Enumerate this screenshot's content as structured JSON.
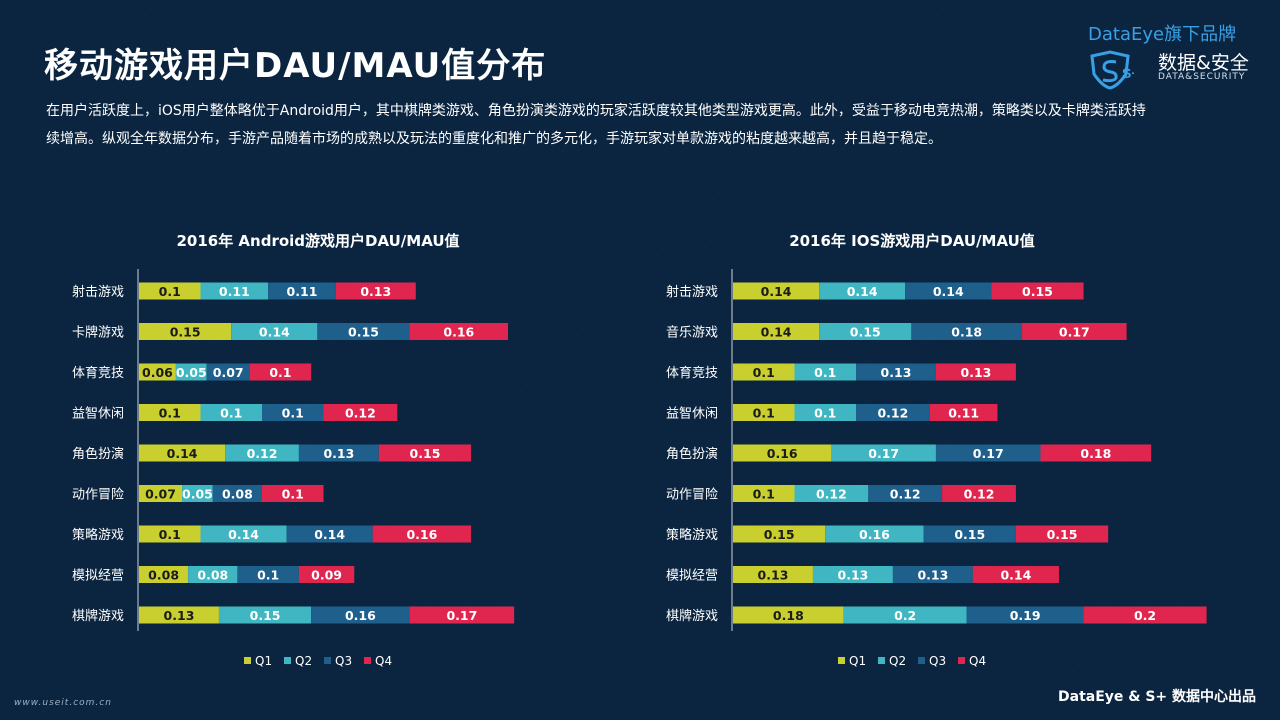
{
  "page": {
    "title": "移动游戏用户DAU/MAU值分布",
    "description": "在用户活跃度上，iOS用户整体略优于Android用户，其中棋牌类游戏、角色扮演类游戏的玩家活跃度较其他类型游戏更高。此外，受益于移动电竞热潮，策略类以及卡牌类活跃持续增高。纵观全年数据分布，手游产品随着市场的成熟以及玩法的重度化和推广的多元化，手游玩家对单款游戏的粘度越来越高，并且趋于稳定。"
  },
  "brand": {
    "top": "DataEye旗下品牌",
    "logo_text": "S+",
    "name_cn": "数据&安全",
    "name_en": "DATA&SECURITY"
  },
  "footer": {
    "left": "www.useit.com.cn",
    "right": "DataEye & S+ 数据中心出品"
  },
  "colors": {
    "Q1": "#c8cf2e",
    "Q2": "#3fb6c1",
    "Q3": "#1e5f8c",
    "Q4": "#e0264f"
  },
  "chart_data": [
    {
      "type": "bar",
      "stacked": true,
      "orientation": "horizontal",
      "title": "2016年 Android游戏用户DAU/MAU值",
      "categories": [
        "射击游戏",
        "卡牌游戏",
        "体育竞技",
        "益智休闲",
        "角色扮演",
        "动作冒险",
        "策略游戏",
        "模拟经营",
        "棋牌游戏"
      ],
      "series": [
        {
          "name": "Q1",
          "values": [
            0.1,
            0.15,
            0.06,
            0.1,
            0.14,
            0.07,
            0.1,
            0.08,
            0.13
          ]
        },
        {
          "name": "Q2",
          "values": [
            0.11,
            0.14,
            0.05,
            0.1,
            0.12,
            0.05,
            0.14,
            0.08,
            0.15
          ]
        },
        {
          "name": "Q3",
          "values": [
            0.11,
            0.15,
            0.07,
            0.1,
            0.13,
            0.08,
            0.14,
            0.1,
            0.16
          ]
        },
        {
          "name": "Q4",
          "values": [
            0.13,
            0.16,
            0.1,
            0.12,
            0.15,
            0.1,
            0.16,
            0.09,
            0.17
          ]
        }
      ],
      "legend": "bottom"
    },
    {
      "type": "bar",
      "stacked": true,
      "orientation": "horizontal",
      "title": "2016年 IOS游戏用户DAU/MAU值",
      "categories": [
        "射击游戏",
        "音乐游戏",
        "体育竞技",
        "益智休闲",
        "角色扮演",
        "动作冒险",
        "策略游戏",
        "模拟经营",
        "棋牌游戏"
      ],
      "series": [
        {
          "name": "Q1",
          "values": [
            0.14,
            0.14,
            0.1,
            0.1,
            0.16,
            0.1,
            0.15,
            0.13,
            0.18
          ]
        },
        {
          "name": "Q2",
          "values": [
            0.14,
            0.15,
            0.1,
            0.1,
            0.17,
            0.12,
            0.16,
            0.13,
            0.2
          ]
        },
        {
          "name": "Q3",
          "values": [
            0.14,
            0.18,
            0.13,
            0.12,
            0.17,
            0.12,
            0.15,
            0.13,
            0.19
          ]
        },
        {
          "name": "Q4",
          "values": [
            0.15,
            0.17,
            0.13,
            0.11,
            0.18,
            0.12,
            0.15,
            0.14,
            0.2
          ]
        }
      ],
      "legend": "bottom"
    }
  ]
}
